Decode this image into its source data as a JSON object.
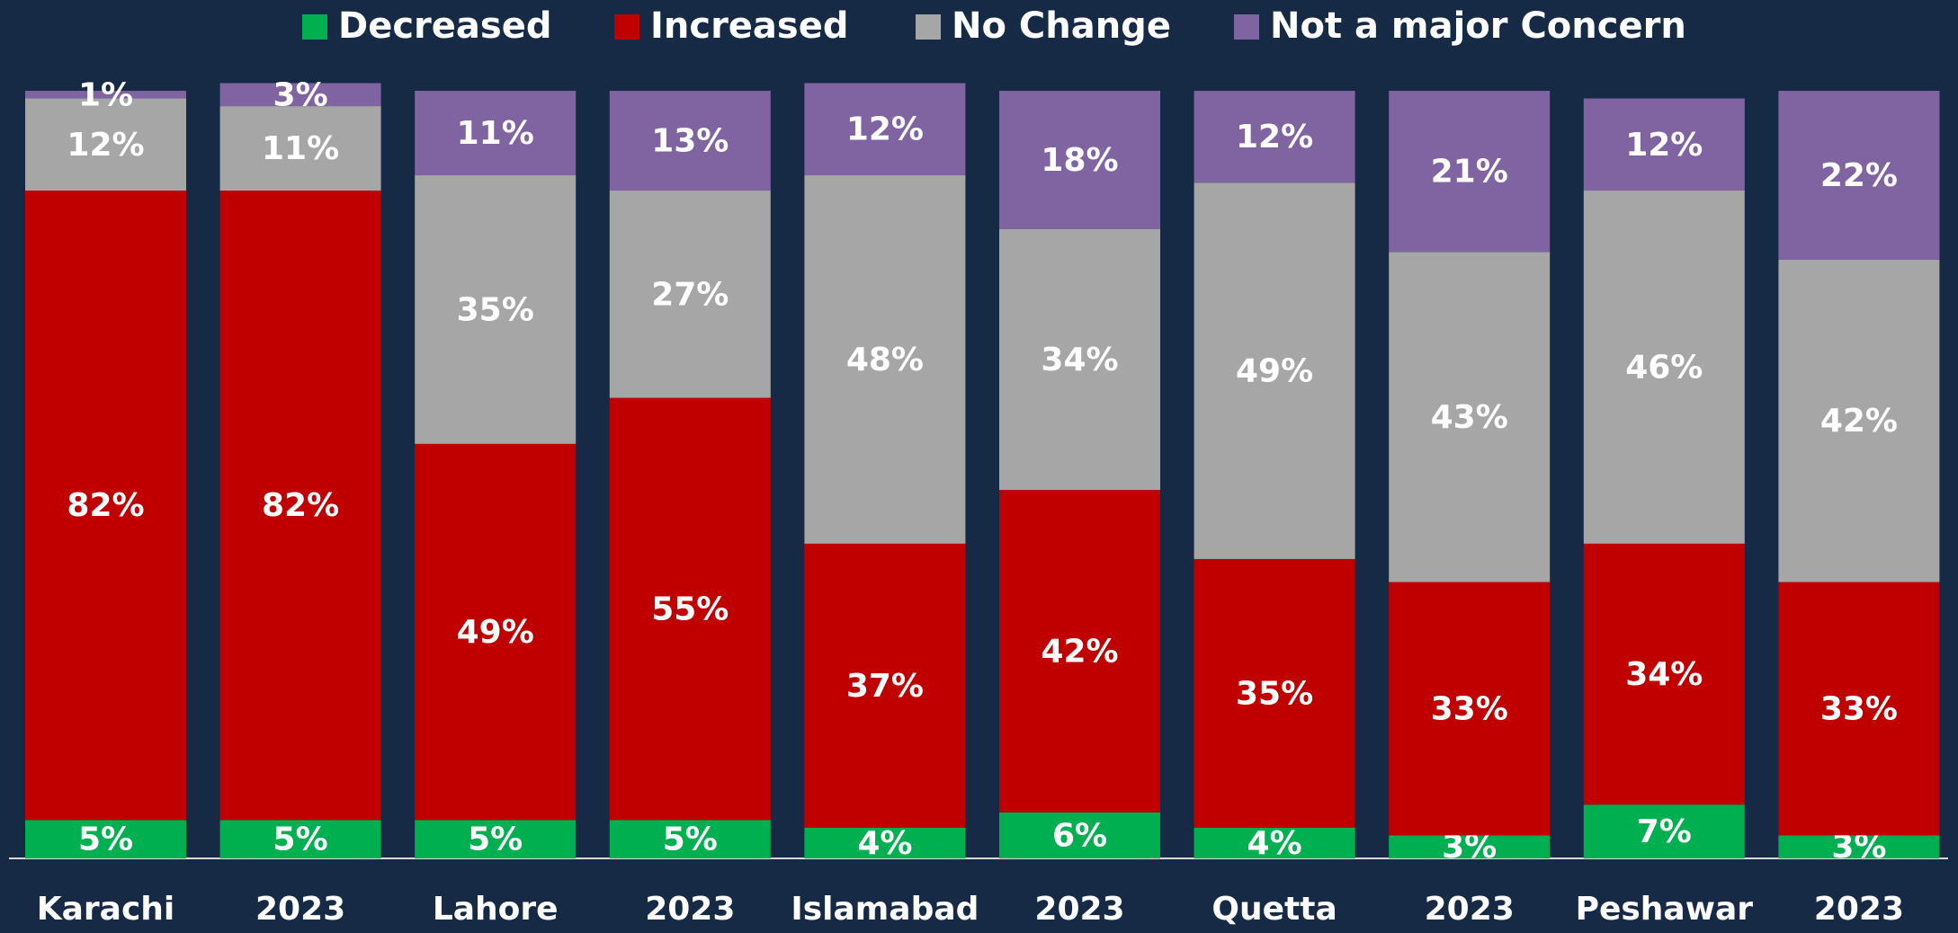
{
  "chart_data": {
    "type": "stacked_bar",
    "categories": [
      "Karachi",
      "2023",
      "Lahore",
      "2023",
      "Islamabad",
      "2023",
      "Quetta",
      "2023",
      "Peshawar",
      "2023"
    ],
    "series": [
      {
        "name": "Decreased",
        "color": "#00b050",
        "values": [
          5,
          5,
          5,
          5,
          4,
          6,
          4,
          3,
          7,
          3
        ],
        "value_labels": [
          "5%",
          "5%",
          "5%",
          "5%",
          "4%",
          "6%",
          "4%",
          "3%",
          "7%",
          "3%"
        ]
      },
      {
        "name": "Increased",
        "color": "#c00000",
        "values": [
          82,
          82,
          49,
          55,
          37,
          42,
          35,
          33,
          34,
          33
        ],
        "value_labels": [
          "82%",
          "82%",
          "49%",
          "55%",
          "37%",
          "42%",
          "35%",
          "33%",
          "34%",
          "33%"
        ]
      },
      {
        "name": "No Change",
        "color": "#a6a6a6",
        "values": [
          12,
          11,
          35,
          27,
          48,
          34,
          49,
          43,
          46,
          42
        ],
        "value_labels": [
          "12%",
          "11%",
          "35%",
          "27%",
          "48%",
          "34%",
          "49%",
          "43%",
          "46%",
          "42%"
        ]
      },
      {
        "name": "Not a major Concern",
        "color": "#8064a2",
        "values": [
          1,
          3,
          11,
          13,
          12,
          18,
          12,
          21,
          12,
          22
        ],
        "value_labels": [
          "1%",
          "3%",
          "11%",
          "13%",
          "12%",
          "18%",
          "12%",
          "21%",
          "12%",
          "22%"
        ]
      }
    ],
    "ylim": [
      0,
      100
    ],
    "legend": "top"
  }
}
